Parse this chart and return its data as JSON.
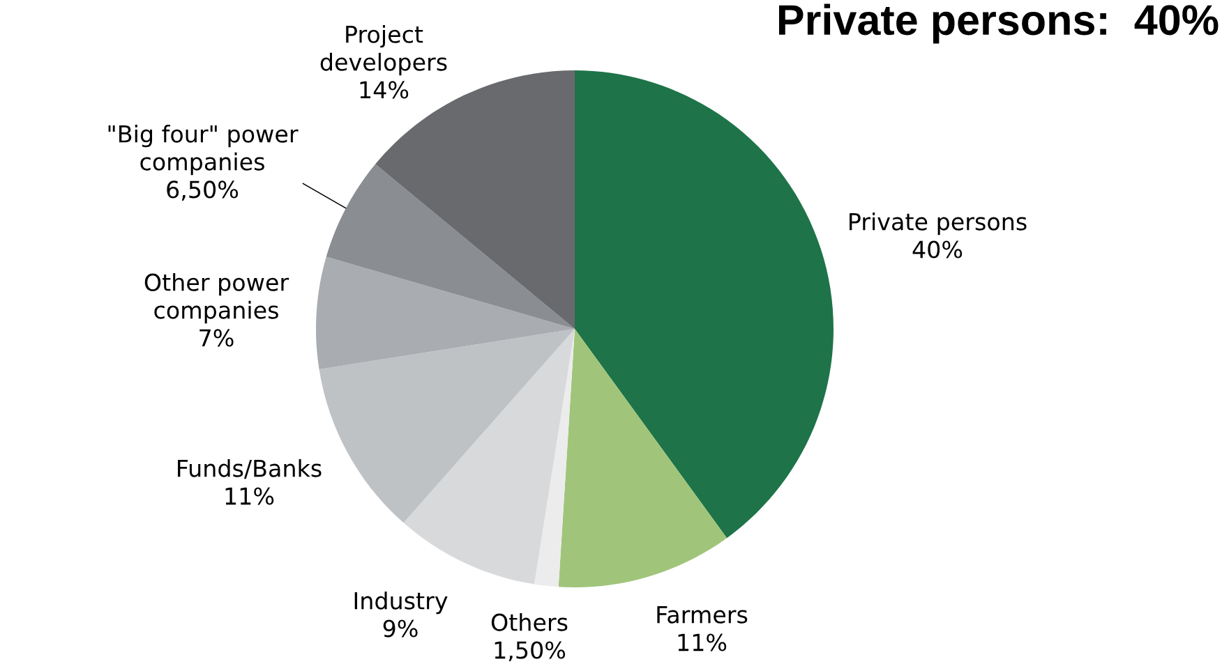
{
  "chart_data": {
    "type": "pie",
    "title": "Private persons:  40%",
    "categories": [
      "Private persons",
      "Farmers",
      "Others",
      "Industry",
      "Funds/Banks",
      "Other power\ncompanies",
      "\"Big four\" power\ncompanies",
      "Project\ndevelopers"
    ],
    "values": [
      40,
      11,
      1.5,
      9,
      11,
      7,
      6.5,
      14
    ],
    "value_labels": [
      "40%",
      "11%",
      "1,50%",
      "9%",
      "11%",
      "7%",
      "6,50%",
      "14%"
    ],
    "colors": [
      "#1e7349",
      "#a0c57a",
      "#ececec",
      "#d8d9db",
      "#bfc2c5",
      "#a9acb0",
      "#8a8d91",
      "#696a6e"
    ],
    "legend": false
  }
}
